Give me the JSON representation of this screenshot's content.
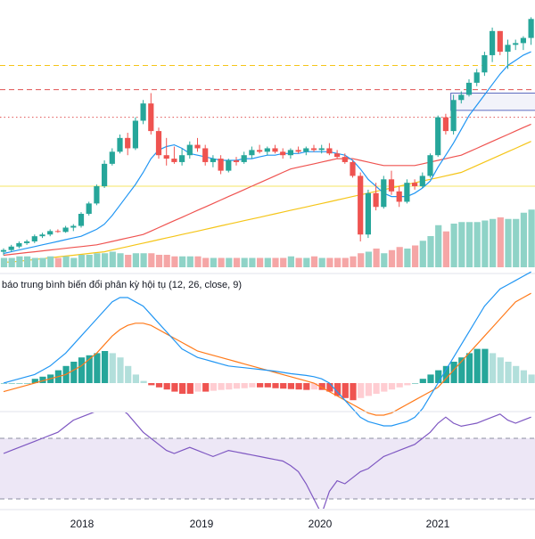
{
  "chart_data": {
    "type": "candlestick",
    "x_axis_labels": [
      "2018",
      "2019",
      "2020",
      "2021"
    ],
    "panes": {
      "price": {
        "candles": [
          {
            "o": 4,
            "h": 6,
            "l": 2,
            "c": 5
          },
          {
            "o": 5,
            "h": 8,
            "l": 4,
            "c": 7
          },
          {
            "o": 7,
            "h": 10,
            "l": 6,
            "c": 9
          },
          {
            "o": 9,
            "h": 11,
            "l": 8,
            "c": 10
          },
          {
            "o": 10,
            "h": 14,
            "l": 9,
            "c": 13
          },
          {
            "o": 13,
            "h": 15,
            "l": 12,
            "c": 14
          },
          {
            "o": 14,
            "h": 17,
            "l": 13,
            "c": 16
          },
          {
            "o": 16,
            "h": 17,
            "l": 15,
            "c": 15.5
          },
          {
            "o": 15.5,
            "h": 19,
            "l": 15,
            "c": 18
          },
          {
            "o": 18,
            "h": 20,
            "l": 16,
            "c": 19
          },
          {
            "o": 19,
            "h": 27,
            "l": 18,
            "c": 26
          },
          {
            "o": 26,
            "h": 33,
            "l": 25,
            "c": 32
          },
          {
            "o": 32,
            "h": 43,
            "l": 31,
            "c": 42
          },
          {
            "o": 42,
            "h": 57,
            "l": 41,
            "c": 55
          },
          {
            "o": 55,
            "h": 64,
            "l": 54,
            "c": 62
          },
          {
            "o": 62,
            "h": 72,
            "l": 61,
            "c": 70
          },
          {
            "o": 70,
            "h": 73,
            "l": 60,
            "c": 64
          },
          {
            "o": 64,
            "h": 82,
            "l": 63,
            "c": 80
          },
          {
            "o": 80,
            "h": 92,
            "l": 78,
            "c": 90
          },
          {
            "o": 90,
            "h": 96,
            "l": 72,
            "c": 74
          },
          {
            "o": 74,
            "h": 76,
            "l": 58,
            "c": 60
          },
          {
            "o": 60,
            "h": 70,
            "l": 54,
            "c": 58
          },
          {
            "o": 58,
            "h": 65,
            "l": 55,
            "c": 56
          },
          {
            "o": 56,
            "h": 64,
            "l": 54,
            "c": 60
          },
          {
            "o": 60,
            "h": 68,
            "l": 58,
            "c": 66
          },
          {
            "o": 66,
            "h": 70,
            "l": 62,
            "c": 64
          },
          {
            "o": 64,
            "h": 66,
            "l": 54,
            "c": 56
          },
          {
            "o": 56,
            "h": 60,
            "l": 53,
            "c": 58
          },
          {
            "o": 58,
            "h": 60,
            "l": 49,
            "c": 51
          },
          {
            "o": 51,
            "h": 58,
            "l": 50,
            "c": 57
          },
          {
            "o": 57,
            "h": 59,
            "l": 54,
            "c": 56
          },
          {
            "o": 56,
            "h": 62,
            "l": 55,
            "c": 60
          },
          {
            "o": 60,
            "h": 65,
            "l": 58,
            "c": 63
          },
          {
            "o": 63,
            "h": 66,
            "l": 61,
            "c": 62
          },
          {
            "o": 62,
            "h": 65,
            "l": 60,
            "c": 64
          },
          {
            "o": 64,
            "h": 66,
            "l": 61,
            "c": 62
          },
          {
            "o": 62,
            "h": 64,
            "l": 58,
            "c": 60
          },
          {
            "o": 60,
            "h": 64,
            "l": 58,
            "c": 63
          },
          {
            "o": 63,
            "h": 65,
            "l": 61,
            "c": 62
          },
          {
            "o": 62,
            "h": 65,
            "l": 60,
            "c": 64
          },
          {
            "o": 64,
            "h": 66,
            "l": 62,
            "c": 63
          },
          {
            "o": 63,
            "h": 66,
            "l": 61,
            "c": 64
          },
          {
            "o": 64,
            "h": 67,
            "l": 60,
            "c": 61
          },
          {
            "o": 61,
            "h": 63,
            "l": 58,
            "c": 59
          },
          {
            "o": 59,
            "h": 61,
            "l": 55,
            "c": 56
          },
          {
            "o": 56,
            "h": 57,
            "l": 47,
            "c": 48
          },
          {
            "o": 48,
            "h": 50,
            "l": 10,
            "c": 14
          },
          {
            "o": 14,
            "h": 40,
            "l": 12,
            "c": 38
          },
          {
            "o": 38,
            "h": 44,
            "l": 28,
            "c": 30
          },
          {
            "o": 30,
            "h": 48,
            "l": 29,
            "c": 46
          },
          {
            "o": 46,
            "h": 51,
            "l": 37,
            "c": 39
          },
          {
            "o": 39,
            "h": 42,
            "l": 30,
            "c": 33
          },
          {
            "o": 33,
            "h": 46,
            "l": 32,
            "c": 44
          },
          {
            "o": 44,
            "h": 46,
            "l": 40,
            "c": 42
          },
          {
            "o": 42,
            "h": 50,
            "l": 41,
            "c": 48
          },
          {
            "o": 48,
            "h": 61,
            "l": 47,
            "c": 60
          },
          {
            "o": 60,
            "h": 83,
            "l": 59,
            "c": 82
          },
          {
            "o": 82,
            "h": 84,
            "l": 72,
            "c": 74
          },
          {
            "o": 74,
            "h": 95,
            "l": 72,
            "c": 92
          },
          {
            "o": 92,
            "h": 97,
            "l": 90,
            "c": 95
          },
          {
            "o": 95,
            "h": 104,
            "l": 94,
            "c": 102
          },
          {
            "o": 102,
            "h": 110,
            "l": 100,
            "c": 108
          },
          {
            "o": 108,
            "h": 120,
            "l": 106,
            "c": 118
          },
          {
            "o": 118,
            "h": 134,
            "l": 114,
            "c": 132
          },
          {
            "o": 132,
            "h": 132,
            "l": 118,
            "c": 120
          },
          {
            "o": 120,
            "h": 127,
            "l": 110,
            "c": 124
          },
          {
            "o": 124,
            "h": 127,
            "l": 121,
            "c": 125
          },
          {
            "o": 125,
            "h": 129,
            "l": 121,
            "c": 128
          },
          {
            "o": 128,
            "h": 140,
            "l": 124,
            "c": 139
          }
        ],
        "sma_fast": [
          3,
          4,
          5,
          6,
          7,
          8,
          9,
          10,
          11,
          12,
          13,
          15,
          17,
          20,
          25,
          31,
          37,
          43,
          50,
          58,
          63,
          65,
          66,
          64,
          61,
          60,
          59,
          58,
          57,
          57,
          57,
          58,
          58,
          59,
          60,
          60,
          61,
          61,
          61,
          62,
          62,
          62,
          62,
          61,
          60,
          57,
          52,
          46,
          42,
          38,
          36,
          36,
          36,
          38,
          41,
          45,
          53,
          60,
          67,
          75,
          83,
          89,
          95,
          101,
          107,
          112,
          115,
          118,
          120
        ],
        "sma_mid": [
          2,
          2.5,
          3,
          3.5,
          4,
          4.5,
          5,
          5.5,
          6,
          6.5,
          7,
          7.5,
          8,
          9,
          10,
          11,
          12,
          13,
          14,
          16,
          18,
          20,
          22,
          24,
          26,
          28,
          30,
          32,
          34,
          36,
          38,
          40,
          42,
          44,
          46,
          48,
          50,
          52,
          53,
          54,
          55,
          56,
          57,
          58,
          58,
          58,
          57,
          56,
          55,
          54,
          54,
          54,
          54,
          54,
          55,
          56,
          57,
          58,
          59,
          60,
          62,
          64,
          66,
          68,
          70,
          72,
          74,
          76,
          78
        ],
        "sma_slow": [
          -2,
          -2,
          -1.5,
          -1,
          -0.5,
          0,
          0.5,
          1,
          1.5,
          2,
          2.5,
          3,
          3.5,
          4,
          5,
          6,
          7,
          8,
          9,
          10,
          11,
          12,
          13,
          14,
          15,
          16,
          17,
          18,
          19,
          20,
          21,
          22,
          23,
          24,
          25,
          26,
          27,
          28,
          29,
          30,
          31,
          32,
          33,
          34,
          35,
          36,
          37,
          38,
          39,
          40,
          41,
          42,
          43,
          44,
          45,
          46,
          47,
          48,
          49,
          50,
          52,
          54,
          56,
          58,
          60,
          62,
          64,
          66,
          68
        ]
      },
      "volume": [
        6,
        6,
        7,
        7,
        6,
        6,
        7,
        6,
        7,
        6,
        8,
        8,
        9,
        9,
        10,
        9,
        8,
        9,
        9,
        9,
        8,
        8,
        7,
        7,
        7,
        7,
        6,
        6,
        6,
        6,
        6,
        6,
        6,
        6,
        6,
        6,
        6,
        7,
        6,
        6,
        7,
        6,
        6,
        6,
        6,
        7,
        9,
        10,
        12,
        9,
        11,
        13,
        12,
        14,
        17,
        20,
        27,
        23,
        28,
        29,
        29,
        29,
        30,
        31,
        32,
        31,
        31,
        35,
        37
      ],
      "macd": {
        "title": "báo trung bình biến đổi phân kỳ hội tụ (12, 26, close, 9)",
        "macd_line": [
          0,
          0.5,
          1,
          1.5,
          2,
          3,
          4,
          5.5,
          7,
          9,
          11,
          13,
          15,
          17,
          19,
          20,
          20,
          19,
          18,
          16,
          14,
          12,
          10,
          8,
          7,
          6,
          5.5,
          5,
          4.5,
          4,
          3.8,
          3.6,
          3.4,
          3.2,
          3,
          2.8,
          2.5,
          2.2,
          2,
          1.8,
          1.5,
          1,
          0,
          -2,
          -4,
          -6,
          -8,
          -9,
          -9.5,
          -10,
          -10,
          -9.5,
          -9,
          -8,
          -6,
          -3,
          0,
          3,
          6,
          9,
          12,
          15,
          18,
          20,
          22,
          23,
          24,
          25,
          26
        ],
        "signal_line": [
          -2,
          -1.5,
          -1,
          -0.5,
          0,
          0.5,
          1,
          1.5,
          2,
          3,
          4,
          5.5,
          7,
          9,
          11,
          12.5,
          13.5,
          14,
          14,
          13.5,
          12.5,
          11.5,
          10.5,
          9.5,
          8.5,
          7.5,
          7,
          6.5,
          6,
          5.5,
          5,
          4.5,
          4,
          3.5,
          3,
          2.5,
          2,
          1.5,
          1,
          0.5,
          0,
          -1,
          -2,
          -3,
          -4,
          -5,
          -6,
          -7,
          -7.5,
          -7.5,
          -7,
          -6,
          -5,
          -4,
          -3,
          -2,
          -1,
          1,
          3,
          5,
          7,
          9,
          11,
          13,
          15,
          17,
          19,
          20,
          21
        ],
        "histogram": [
          0,
          0,
          0,
          0,
          1,
          1.5,
          2,
          3,
          4,
          5,
          6,
          6.5,
          7,
          7.5,
          7,
          6,
          4,
          2,
          0.5,
          -0.5,
          -1,
          -1.5,
          -2,
          -2.5,
          -2.5,
          -2,
          -2,
          -1.8,
          -1.6,
          -1.5,
          -1.3,
          -1.2,
          -1,
          -1,
          -1,
          -1.2,
          -1.3,
          -1.4,
          -1.5,
          -1.6,
          -1.5,
          -1.6,
          -2,
          -3,
          -3.5,
          -4,
          -3.5,
          -3,
          -2.5,
          -2,
          -1.5,
          -1,
          -0.5,
          0,
          1,
          2,
          3,
          4,
          5,
          6,
          7,
          8,
          8,
          7,
          6,
          5,
          4,
          3,
          2
        ]
      },
      "rsi": {
        "values": [
          60,
          62,
          64,
          66,
          68,
          70,
          72,
          74,
          78,
          82,
          84,
          86,
          88,
          90,
          92,
          90,
          86,
          80,
          74,
          70,
          66,
          62,
          60,
          62,
          64,
          62,
          60,
          58,
          60,
          62,
          61,
          60,
          59,
          58,
          57,
          56,
          55,
          52,
          48,
          40,
          30,
          20,
          35,
          42,
          40,
          44,
          48,
          50,
          54,
          58,
          60,
          62,
          64,
          66,
          70,
          74,
          80,
          84,
          80,
          78,
          79,
          80,
          82,
          84,
          86,
          82,
          80,
          82,
          84
        ],
        "upper": 70,
        "lower": 30
      }
    },
    "horizontal_levels": [
      {
        "value": 112,
        "style": "dashed",
        "color": "#f5c518"
      },
      {
        "value": 98,
        "style": "dashed",
        "color": "#e05252"
      },
      {
        "value": 82,
        "style": "dotted",
        "color": "#e05252"
      },
      {
        "value": 42,
        "style": "solid",
        "color": "#f5e663"
      }
    ],
    "zone_box": {
      "from_index": 58,
      "to_index": 68,
      "low": 86,
      "high": 96,
      "color": "#5c6bc0"
    }
  },
  "colors": {
    "up": "#26a69a",
    "down": "#ef5350",
    "up_volume": "#8fd3c7",
    "down_volume": "#f5a6a6",
    "sma_fast": "#2196f3",
    "sma_mid": "#ef5350",
    "sma_slow": "#f5c518",
    "macd_line": "#2196f3",
    "signal_line": "#ff7a1a",
    "hist_up_strong": "#26a69a",
    "hist_up_weak": "#b2dfdb",
    "hist_down_strong": "#ef5350",
    "hist_down_weak": "#ffcdd2",
    "rsi_line": "#7e57c2",
    "rsi_band": "#ede7f6",
    "axis_text": "#131722"
  }
}
